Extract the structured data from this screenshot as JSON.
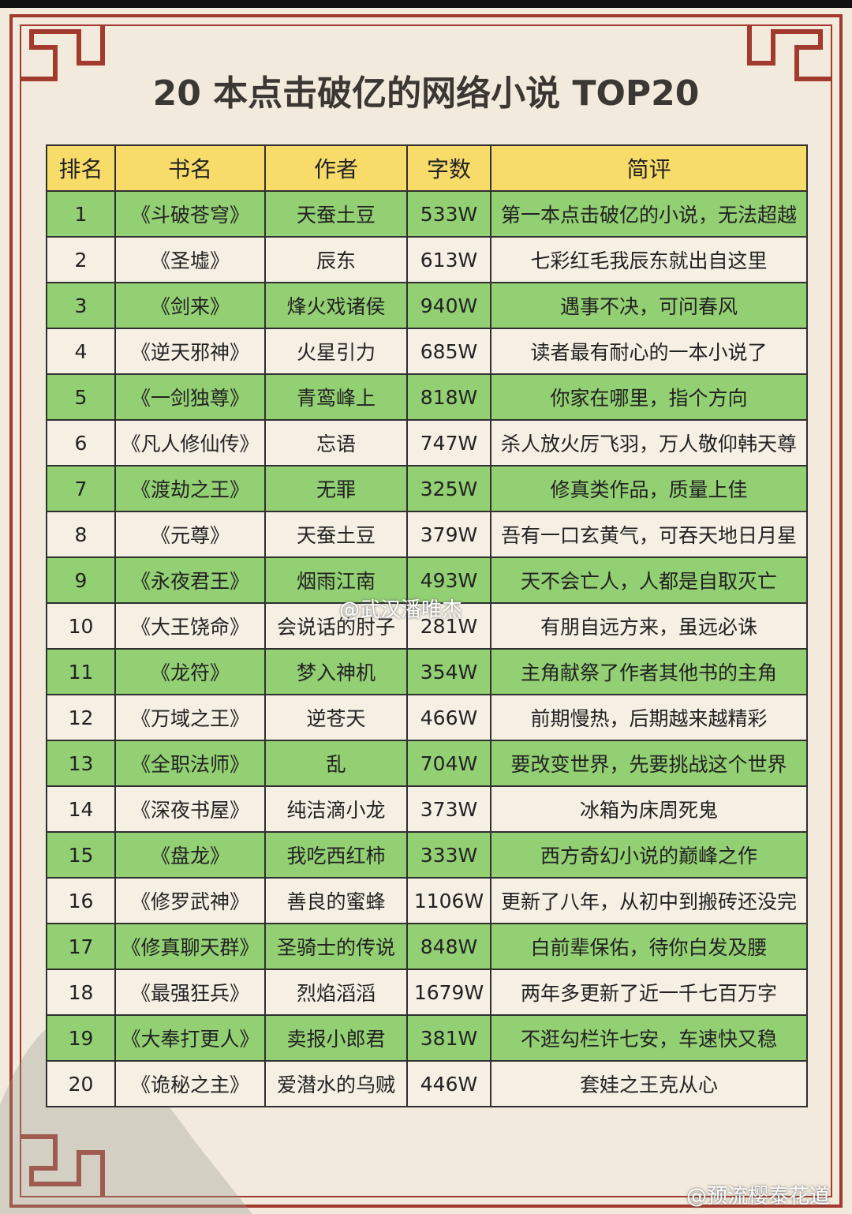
{
  "header": {
    "title": "20 本点击破亿的网络小说 TOP20"
  },
  "table": {
    "columns": [
      "排名",
      "书名",
      "作者",
      "字数",
      "简评"
    ],
    "rows": [
      [
        "1",
        "《斗破苍穹》",
        "天蚕土豆",
        "533W",
        "第一本点击破亿的小说，无法超越"
      ],
      [
        "2",
        "《圣墟》",
        "辰东",
        "613W",
        "七彩红毛我辰东就出自这里"
      ],
      [
        "3",
        "《剑来》",
        "烽火戏诸侯",
        "940W",
        "遇事不决，可问春风"
      ],
      [
        "4",
        "《逆天邪神》",
        "火星引力",
        "685W",
        "读者最有耐心的一本小说了"
      ],
      [
        "5",
        "《一剑独尊》",
        "青鸾峰上",
        "818W",
        "你家在哪里，指个方向"
      ],
      [
        "6",
        "《凡人修仙传》",
        "忘语",
        "747W",
        "杀人放火厉飞羽，万人敬仰韩天尊"
      ],
      [
        "7",
        "《渡劫之王》",
        "无罪",
        "325W",
        "修真类作品，质量上佳"
      ],
      [
        "8",
        "《元尊》",
        "天蚕土豆",
        "379W",
        "吾有一口玄黄气，可吞天地日月星"
      ],
      [
        "9",
        "《永夜君王》",
        "烟雨江南",
        "493W",
        "天不会亡人，人都是自取灭亡"
      ],
      [
        "10",
        "《大王饶命》",
        "会说话的肘子",
        "281W",
        "有朋自远方来，虽远必诛"
      ],
      [
        "11",
        "《龙符》",
        "梦入神机",
        "354W",
        "主角献祭了作者其他书的主角"
      ],
      [
        "12",
        "《万域之王》",
        "逆苍天",
        "466W",
        "前期慢热，后期越来越精彩"
      ],
      [
        "13",
        "《全职法师》",
        "乱",
        "704W",
        "要改变世界，先要挑战这个世界"
      ],
      [
        "14",
        "《深夜书屋》",
        "纯洁滴小龙",
        "373W",
        "冰箱为床周死鬼"
      ],
      [
        "15",
        "《盘龙》",
        "我吃西红柿",
        "333W",
        "西方奇幻小说的巅峰之作"
      ],
      [
        "16",
        "《修罗武神》",
        "善良的蜜蜂",
        "1106W",
        "更新了八年，从初中到搬砖还没完"
      ],
      [
        "17",
        "《修真聊天群》",
        "圣骑士的传说",
        "848W",
        "白前辈保佑，待你白发及腰"
      ],
      [
        "18",
        "《最强狂兵》",
        "烈焰滔滔",
        "1679W",
        "两年多更新了近一千七百万字"
      ],
      [
        "19",
        "《大奉打更人》",
        "卖报小郎君",
        "381W",
        "不逛勾栏许七安，车速快又稳"
      ],
      [
        "20",
        "《诡秘之主》",
        "爱潜水的乌贼",
        "446W",
        "套娃之王克从心"
      ]
    ]
  },
  "watermarks": [
    "@武汉潘唯杰",
    "@预流樱泰花道"
  ]
}
